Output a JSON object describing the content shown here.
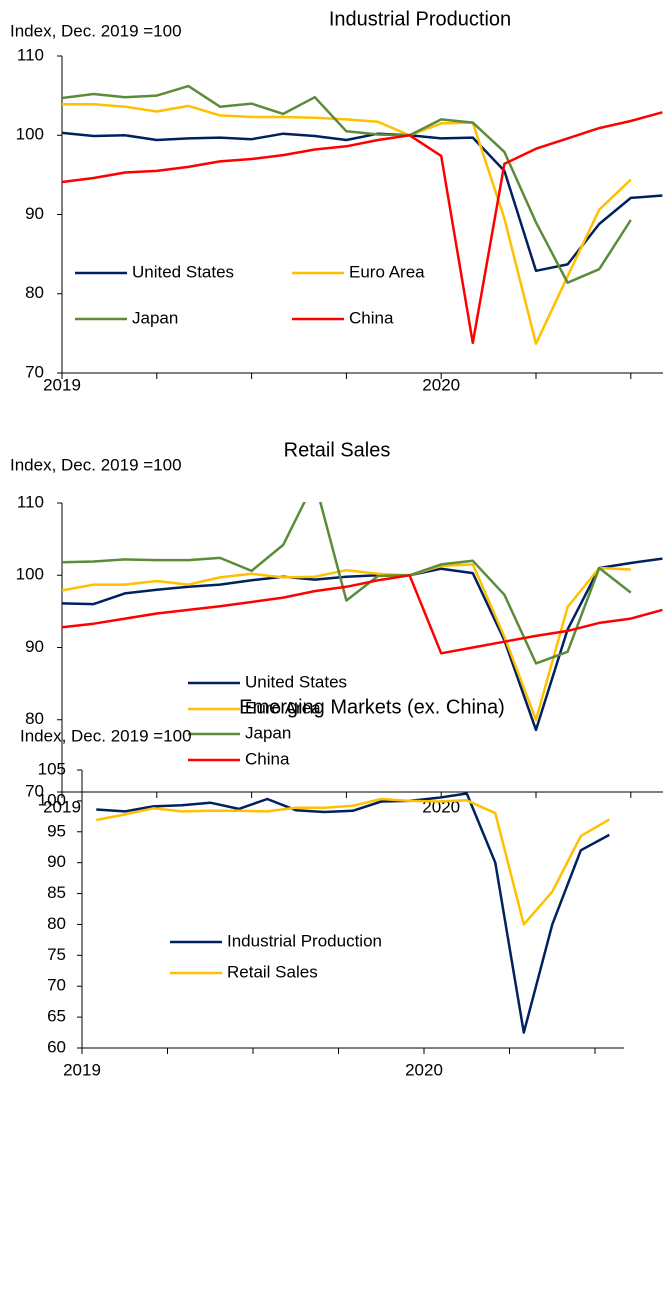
{
  "chart_data": [
    {
      "type": "line",
      "title": "Industrial Production",
      "y_label": "Index, Dec. 2019 =100",
      "categories": [
        "2019",
        null,
        null,
        null,
        null,
        null,
        null,
        null,
        null,
        null,
        null,
        null,
        "2020",
        null,
        null,
        null,
        null,
        null,
        null,
        null
      ],
      "ylim": [
        70,
        110
      ],
      "yticks": [
        70,
        80,
        90,
        100,
        110
      ],
      "series": [
        {
          "name": "United States",
          "color": "#002060",
          "values": [
            100.3,
            99.9,
            100,
            99.4,
            99.6,
            99.7,
            99.5,
            100.2,
            99.9,
            99.4,
            100.2,
            100,
            99.6,
            99.7,
            95.5,
            82.9,
            83.7,
            88.8,
            92.1,
            92.4
          ]
        },
        {
          "name": "Euro Area",
          "color": "#FFC000",
          "values": [
            103.9,
            103.9,
            103.6,
            103.0,
            103.7,
            102.5,
            102.3,
            102.3,
            102.2,
            102.0,
            101.7,
            100,
            101.5,
            101.6,
            89.5,
            73.7,
            82.2,
            90.6,
            94.4,
            null
          ]
        },
        {
          "name": "Japan",
          "color": "#5B8C3A",
          "values": [
            104.7,
            105.2,
            104.8,
            105.0,
            106.2,
            103.6,
            104.0,
            102.7,
            104.8,
            100.5,
            100.1,
            100,
            102.0,
            101.6,
            97.9,
            89.0,
            81.4,
            83.1,
            89.3,
            null
          ]
        },
        {
          "name": "China",
          "color": "#FF0000",
          "values": [
            94.1,
            94.6,
            95.3,
            95.5,
            96.0,
            96.7,
            97.0,
            97.5,
            98.2,
            98.6,
            99.4,
            100,
            97.4,
            73.8,
            96.4,
            98.3,
            99.6,
            100.9,
            101.8,
            102.9
          ]
        }
      ]
    },
    {
      "type": "line",
      "title": "Retail Sales",
      "y_label": "Index, Dec. 2019 =100",
      "categories": [
        "2019",
        null,
        null,
        null,
        null,
        null,
        null,
        null,
        null,
        null,
        null,
        null,
        "2020",
        null,
        null,
        null,
        null,
        null,
        null,
        null
      ],
      "ylim": [
        70,
        110
      ],
      "yticks": [
        70,
        80,
        90,
        100,
        110
      ],
      "series": [
        {
          "name": "United States",
          "color": "#002060",
          "values": [
            96.1,
            96.0,
            97.5,
            98.0,
            98.4,
            98.7,
            99.3,
            99.8,
            99.4,
            99.8,
            100.0,
            100,
            100.9,
            100.3,
            91.0,
            78.6,
            92.5,
            101.0,
            101.7,
            102.3
          ]
        },
        {
          "name": "Euro Area",
          "color": "#FFC000",
          "values": [
            97.9,
            98.7,
            98.7,
            99.2,
            98.7,
            99.7,
            100.2,
            99.7,
            99.8,
            100.7,
            100.2,
            100,
            101.3,
            101.5,
            91.5,
            80.0,
            95.6,
            101.0,
            100.8,
            null
          ]
        },
        {
          "name": "Japan",
          "color": "#5B8C3A",
          "values": [
            101.8,
            101.9,
            102.2,
            102.1,
            102.1,
            102.4,
            100.6,
            104.2,
            113.0,
            96.5,
            99.9,
            100,
            101.5,
            102.0,
            97.3,
            87.8,
            89.4,
            101.0,
            97.6,
            null
          ]
        },
        {
          "name": "China",
          "color": "#FF0000",
          "values": [
            92.8,
            93.3,
            94.0,
            94.7,
            95.2,
            95.7,
            96.3,
            96.9,
            97.8,
            98.4,
            99.3,
            100,
            89.2,
            90.0,
            90.8,
            91.6,
            92.3,
            93.4,
            94.0,
            95.2
          ]
        }
      ]
    },
    {
      "type": "line",
      "title": "Emerging Markets (ex. China)",
      "y_label": "Index, Dec. 2019 =100",
      "categories": [
        "2019",
        null,
        null,
        null,
        null,
        null,
        null,
        null,
        null,
        null,
        null,
        null,
        "2020",
        null,
        null,
        null,
        null,
        null,
        null
      ],
      "ylim": [
        60,
        105
      ],
      "yticks": [
        60,
        65,
        70,
        75,
        80,
        85,
        90,
        95,
        100,
        105
      ],
      "series": [
        {
          "name": "Industrial Production",
          "color": "#002060",
          "values": [
            98.6,
            98.3,
            99.1,
            99.3,
            99.7,
            98.7,
            100.3,
            98.5,
            98.2,
            98.4,
            99.9,
            100,
            100.5,
            101.2,
            90.0,
            62.5,
            80.0,
            92.0,
            94.5
          ]
        },
        {
          "name": "Retail Sales",
          "color": "#FFC000",
          "values": [
            96.9,
            97.8,
            98.8,
            98.3,
            98.4,
            98.4,
            98.3,
            98.9,
            98.9,
            99.2,
            100.3,
            100,
            99.9,
            100.1,
            98.0,
            80.0,
            85.3,
            94.3,
            97.0
          ]
        }
      ]
    }
  ]
}
